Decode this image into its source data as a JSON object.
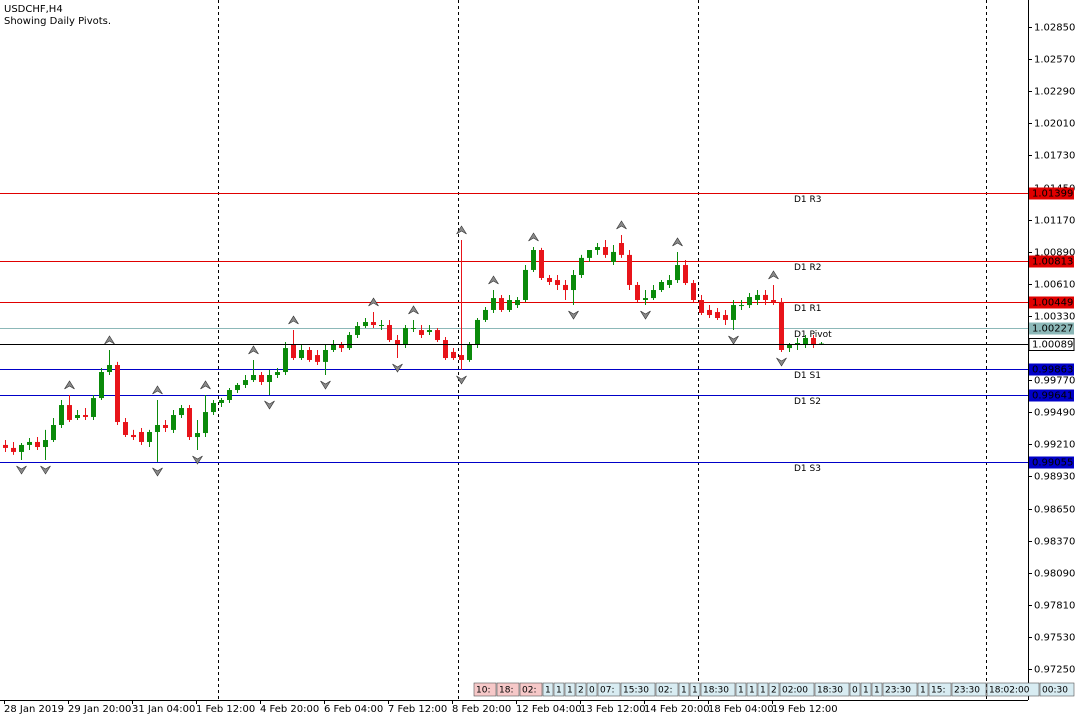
{
  "chart_data": {
    "type": "candlestick",
    "title": "USDCHF,H4",
    "subtitle": "Showing Daily Pivots.",
    "categories": [
      "28 Jan 2019",
      null,
      null,
      null,
      null,
      null,
      null,
      null,
      "29 Jan 20:00",
      null,
      null,
      null,
      null,
      null,
      null,
      null,
      "31 Jan 04:00",
      null,
      null,
      null,
      null,
      null,
      null,
      null,
      "1 Feb 12:00",
      null,
      null,
      null,
      null,
      null,
      null,
      null,
      "4 Feb 20:00",
      null,
      null,
      null,
      null,
      null,
      null,
      null,
      "6 Feb 04:00",
      null,
      null,
      null,
      null,
      null,
      null,
      null,
      "7 Feb 12:00",
      null,
      null,
      null,
      null,
      null,
      null,
      null,
      "8 Feb 20:00",
      null,
      null,
      null,
      null,
      null,
      null,
      null,
      "12 Feb 04:00",
      null,
      null,
      null,
      null,
      null,
      null,
      null,
      "13 Feb 12:00",
      null,
      null,
      null,
      null,
      null,
      null,
      null,
      "14 Feb 20:00",
      null,
      null,
      null,
      null,
      null,
      null,
      null,
      "18 Feb 04:00",
      null,
      null,
      null,
      null,
      null,
      null,
      null,
      "19 Feb 12:00",
      null,
      null,
      null,
      null,
      null,
      null
    ],
    "open": [
      0.99205,
      0.99179,
      0.99144,
      0.99205,
      0.99231,
      0.99187,
      0.99248,
      0.99379,
      0.99553,
      0.9944,
      0.99466,
      0.99449,
      0.99614,
      0.99841,
      0.99902,
      0.99405,
      0.99292,
      0.99318,
      0.99231,
      0.99318,
      0.99379,
      0.99336,
      0.99466,
      0.99527,
      0.99274,
      0.99309,
      0.99492,
      0.99571,
      0.99597,
      0.99684,
      0.99728,
      0.99771,
      0.99815,
      0.99754,
      0.99815,
      0.99841,
      1.00077,
      0.99963,
      1.00033,
      0.99989,
      0.99929,
      1.00033,
      1.00077,
      1.0005,
      1.00164,
      1.00242,
      1.00277,
      1.00251,
      1.00251,
      1.0012,
      1.00077,
      1.00225,
      1.00207,
      1.0019,
      1.00207,
      1.0012,
      1.00016,
      0.99989,
      0.99946,
      1.00077,
      1.00295,
      1.00382,
      1.00486,
      1.00382,
      1.00425,
      1.00469,
      1.00731,
      1.00905,
      1.00661,
      1.00643,
      1.006,
      1.00556,
      1.00687,
      1.00836,
      1.00905,
      1.00931,
      1.00801,
      1.00966,
      1.00862,
      1.006,
      1.00469,
      1.00486,
      1.00556,
      1.006,
      1.00643,
      1.00774,
      1.00617,
      1.00469,
      1.00382,
      1.00364,
      1.00338,
      1.00295,
      1.00425,
      1.00425,
      1.00469,
      1.00513,
      1.00469,
      1.00452,
      1.0005,
      1.00077,
      1.00077,
      1.00138,
      1.00085
    ],
    "high": [
      0.99248,
      0.99231,
      0.99222,
      0.99266,
      0.99274,
      0.99336,
      0.9944,
      0.99597,
      0.99641,
      0.9951,
      0.99527,
      0.99641,
      0.99876,
      1.00033,
      0.99929,
      0.9944,
      0.99336,
      0.99353,
      0.99336,
      0.99597,
      0.99423,
      0.9951,
      0.99553,
      0.99553,
      0.99423,
      0.99641,
      0.99597,
      0.99614,
      0.99702,
      0.99745,
      0.99815,
      0.99946,
      0.99841,
      0.99859,
      0.99876,
      1.00103,
      1.00207,
      1.00077,
      1.00059,
      1.00033,
      1.00077,
      1.0012,
      1.00103,
      1.0019,
      1.00277,
      1.00312,
      1.00364,
      1.00295,
      1.00295,
      1.00164,
      1.00251,
      1.00295,
      1.00251,
      1.00251,
      1.00225,
      1.00146,
      1.0005,
      1.00992,
      1.00103,
      1.00312,
      1.00408,
      1.00556,
      1.00513,
      1.00513,
      1.00495,
      1.00774,
      1.00931,
      1.00923,
      1.00687,
      1.00687,
      1.00643,
      1.00731,
      1.00862,
      1.00905,
      1.00966,
      1.00992,
      1.00949,
      1.01036,
      1.00905,
      1.00626,
      1.00556,
      1.006,
      1.00643,
      1.00687,
      1.00888,
      1.00818,
      1.00643,
      1.00513,
      1.00425,
      1.00399,
      1.00382,
      1.00469,
      1.00469,
      1.0053,
      1.00556,
      1.00556,
      1.006,
      1.00486,
      1.00094,
      1.00138,
      1.00164,
      1.00164,
      1.00103
    ],
    "low": [
      0.99144,
      0.99118,
      0.99074,
      0.99161,
      0.99161,
      0.99074,
      0.99231,
      0.99353,
      0.99405,
      0.99423,
      0.99423,
      0.99423,
      0.99597,
      0.99815,
      0.99379,
      0.99274,
      0.99248,
      0.99205,
      0.99187,
      0.99057,
      0.99318,
      0.99309,
      0.9944,
      0.99248,
      0.99161,
      0.99274,
      0.99466,
      0.99536,
      0.99571,
      0.99658,
      0.99702,
      0.99754,
      0.99728,
      0.99641,
      0.99789,
      0.99815,
      0.99946,
      0.99946,
      0.99929,
      0.99902,
      0.99815,
      1.00016,
      1.00016,
      1.00033,
      1.00138,
      1.00225,
      1.00225,
      1.00207,
      1.00103,
      0.99963,
      1.0005,
      1.0019,
      1.00138,
      1.00164,
      1.00103,
      0.99946,
      0.99946,
      0.99859,
      0.99929,
      1.0005,
      1.00277,
      1.00356,
      1.00364,
      1.00364,
      1.00399,
      1.00452,
      1.00713,
      1.00643,
      1.006,
      1.00556,
      1.00469,
      1.00425,
      1.00661,
      1.00801,
      1.00862,
      1.00836,
      1.00774,
      1.00836,
      1.00556,
      1.00452,
      1.00425,
      1.00469,
      1.00539,
      1.00574,
      1.00617,
      1.006,
      1.00452,
      1.00338,
      1.00312,
      1.00295,
      1.00251,
      1.00207,
      1.00382,
      1.00399,
      1.00425,
      1.00425,
      1.00425,
      1.00016,
      1.00016,
      1.00033,
      1.0005,
      1.0005,
      1.00077
    ],
    "close": [
      0.99179,
      0.99144,
      0.99205,
      0.99231,
      0.99187,
      0.99248,
      0.99379,
      0.99553,
      0.99423,
      0.99466,
      0.99449,
      0.99614,
      0.99841,
      0.99902,
      0.99405,
      0.99292,
      0.99274,
      0.99231,
      0.99318,
      0.99379,
      0.99353,
      0.99466,
      0.99527,
      0.99274,
      0.99309,
      0.99492,
      0.99571,
      0.99597,
      0.99684,
      0.99728,
      0.99771,
      0.99815,
      0.99754,
      0.99815,
      0.99841,
      1.0005,
      0.99963,
      1.00033,
      0.99946,
      0.99929,
      1.00033,
      1.00077,
      1.0005,
      1.00164,
      1.00242,
      1.00277,
      1.00251,
      1.00251,
      1.0012,
      1.00077,
      1.00225,
      1.00225,
      1.00164,
      1.00207,
      1.0012,
      0.99963,
      0.99963,
      0.99946,
      1.00077,
      1.00295,
      1.00382,
      1.00486,
      1.00382,
      1.00469,
      1.00469,
      1.00731,
      1.00905,
      1.00661,
      1.00626,
      1.006,
      1.00556,
      1.00687,
      1.00836,
      1.00905,
      1.00931,
      1.00862,
      1.00888,
      1.00862,
      1.006,
      1.00469,
      1.00486,
      1.00556,
      1.00626,
      1.00643,
      1.00774,
      1.00617,
      1.00469,
      1.00356,
      1.00338,
      1.00312,
      1.00295,
      1.00425,
      1.00425,
      1.00495,
      1.00513,
      1.00469,
      1.00452,
      1.00033,
      1.00077,
      1.00094,
      1.00138,
      1.00077,
      1.00089
    ],
    "up_color": "#0a8a0a",
    "down_color": "#e8141a",
    "fractals_up": [
      8,
      13,
      19,
      25,
      31,
      36,
      46,
      51,
      57,
      61,
      66,
      77,
      84,
      96
    ],
    "fractals_down": [
      2,
      5,
      19,
      24,
      33,
      40,
      49,
      57,
      71,
      80,
      91,
      97
    ],
    "levels": [
      {
        "name": "D1 R3",
        "value": 1.01399,
        "color": "#e00000"
      },
      {
        "name": "D1 R2",
        "value": 1.00813,
        "color": "#e00000"
      },
      {
        "name": "D1 R1",
        "value": 1.00449,
        "color": "#e00000"
      },
      {
        "name": "D1 Pivot",
        "value": 1.00227,
        "color": "#8cb8b8"
      },
      {
        "name": "D1 S1",
        "value": 0.99863,
        "color": "#0000c8"
      },
      {
        "name": "D1 S2",
        "value": 0.99641,
        "color": "#0000c8"
      },
      {
        "name": "D1 S3",
        "value": 0.99055,
        "color": "#0000c8"
      }
    ],
    "ylim": [
      0.96981,
      1.03085
    ],
    "yticks": [
      {
        "value": 1.0285,
        "label": "1.02850"
      },
      {
        "value": 1.0257,
        "label": "1.02570"
      },
      {
        "value": 1.0229,
        "label": "1.02290"
      },
      {
        "value": 1.0201,
        "label": "1.02010"
      },
      {
        "value": 1.0173,
        "label": "1.01730"
      },
      {
        "value": 1.0145,
        "label": "1.01450"
      },
      {
        "value": 1.0117,
        "label": "1.01170"
      },
      {
        "value": 1.0089,
        "label": "1.00890"
      },
      {
        "value": 1.0061,
        "label": "1.00610"
      },
      {
        "value": 1.0033,
        "label": "1.00330"
      },
      {
        "value": 0.9977,
        "label": "0.99770"
      },
      {
        "value": 0.9949,
        "label": "0.99490"
      },
      {
        "value": 0.9921,
        "label": "0.99210"
      },
      {
        "value": 0.9893,
        "label": "0.98930"
      },
      {
        "value": 0.9865,
        "label": "0.98650"
      },
      {
        "value": 0.9837,
        "label": "0.98370"
      },
      {
        "value": 0.9809,
        "label": "0.98090"
      },
      {
        "value": 0.9781,
        "label": "0.97810"
      },
      {
        "value": 0.9753,
        "label": "0.97530"
      },
      {
        "value": 0.9725,
        "label": "0.97250"
      }
    ],
    "session_labels": [
      "10:",
      "18:",
      "02:",
      "1",
      "1",
      "1",
      "2",
      "0",
      "07:",
      "15:30",
      "02:",
      "1",
      "1",
      "18:30",
      "1",
      "1",
      "1",
      "2",
      "02:00",
      "18:30",
      "0",
      "1",
      "1",
      "23:30",
      "1",
      "15:",
      "23:30",
      "18:02:00",
      "00:30"
    ]
  }
}
